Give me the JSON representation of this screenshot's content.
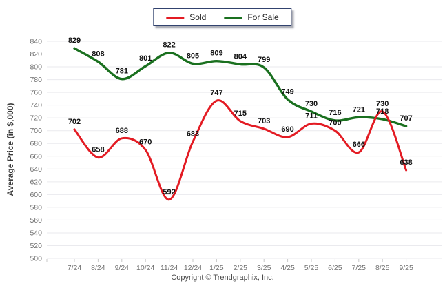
{
  "legend": {
    "items": [
      {
        "label": "Sold",
        "color": "#e31b23"
      },
      {
        "label": "For Sale",
        "color": "#1a701f"
      }
    ]
  },
  "axis": {
    "y_title": "Average Price (in $,000)",
    "y_tick_labels": [
      "840",
      "820",
      "800",
      "780",
      "760",
      "740",
      "720",
      "700",
      "680",
      "660",
      "640",
      "620",
      "600",
      "580",
      "560",
      "540",
      "520",
      "500"
    ],
    "x_tick_labels": [
      "7/24",
      "8/24",
      "9/24",
      "10/24",
      "11/24",
      "12/24",
      "1/25",
      "2/25",
      "3/25",
      "4/25",
      "5/25",
      "6/25",
      "7/25",
      "8/25",
      "9/25"
    ]
  },
  "footer": {
    "copyright": "Copyright © Trendgraphix, Inc."
  },
  "colors": {
    "grid": "#eaeaee",
    "tick_text": "#707070",
    "data_label_text": "#111111",
    "legend_border": "#31426e",
    "sold": "#e31b23",
    "for_sale": "#1a701f"
  },
  "chart_data": {
    "type": "line",
    "categories": [
      "7/24",
      "8/24",
      "9/24",
      "10/24",
      "11/24",
      "12/24",
      "1/25",
      "2/25",
      "3/25",
      "4/25",
      "5/25",
      "6/25",
      "7/25",
      "8/25",
      "9/25"
    ],
    "series": [
      {
        "name": "Sold",
        "color": "#e31b23",
        "values": [
          702,
          658,
          688,
          670,
          592,
          683,
          747,
          715,
          703,
          690,
          711,
          700,
          666,
          730,
          638
        ]
      },
      {
        "name": "For Sale",
        "color": "#1a701f",
        "values": [
          829,
          808,
          781,
          801,
          822,
          805,
          809,
          804,
          799,
          749,
          730,
          716,
          721,
          718,
          707
        ]
      }
    ],
    "title": "",
    "xlabel": "",
    "ylabel": "Average Price (in $,000)",
    "ylim": [
      500,
      840
    ],
    "ytick_step": 20,
    "grid": true,
    "legend_position": "top-center",
    "data_labels_visible": true,
    "line_style": "smooth"
  }
}
